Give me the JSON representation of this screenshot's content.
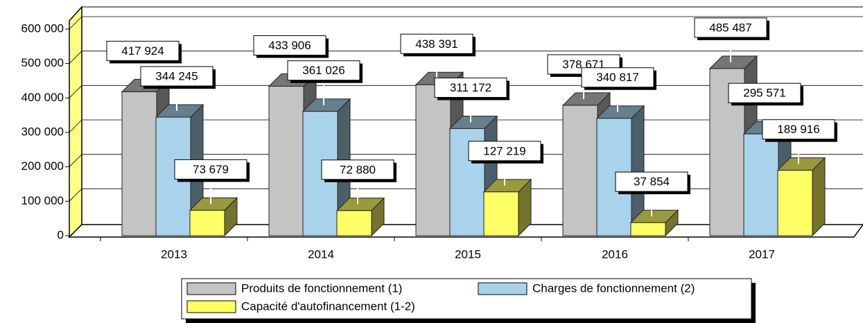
{
  "chart_data": {
    "type": "bar3d",
    "categories": [
      "2013",
      "2014",
      "2015",
      "2016",
      "2017"
    ],
    "series": [
      {
        "name": "Produits de fonctionnement (1)",
        "color": "#c4c4c4",
        "values": [
          417924,
          433906,
          438391,
          378671,
          485487
        ],
        "value_labels": [
          "417 924",
          "433 906",
          "438 391",
          "378 671",
          "485 487"
        ]
      },
      {
        "name": "Charges de fonctionnement (2)",
        "color": "#a9d3ea",
        "values": [
          344245,
          361026,
          311172,
          340817,
          295571
        ],
        "value_labels": [
          "344 245",
          "361 026",
          "311 172",
          "340 817",
          "295 571"
        ]
      },
      {
        "name": "Capacité d'autofinancement (1-2)",
        "color": "#ffff66",
        "values": [
          73679,
          72880,
          127219,
          37854,
          189916
        ],
        "value_labels": [
          "73 679",
          "72 880",
          "127 219",
          "37 854",
          "189 916"
        ]
      }
    ],
    "ylim": [
      0,
      660000
    ],
    "yticks": [
      0,
      {
        "value": 100000,
        "label": "100 000"
      },
      {
        "value": 200000,
        "label": "200 000"
      },
      {
        "value": 300000,
        "label": "300 000"
      },
      {
        "value": 400000,
        "label": "400 000"
      },
      {
        "value": 500000,
        "label": "500 000"
      },
      {
        "value": 600000,
        "label": "600 000"
      }
    ],
    "grid": true,
    "legend": "bottom"
  }
}
